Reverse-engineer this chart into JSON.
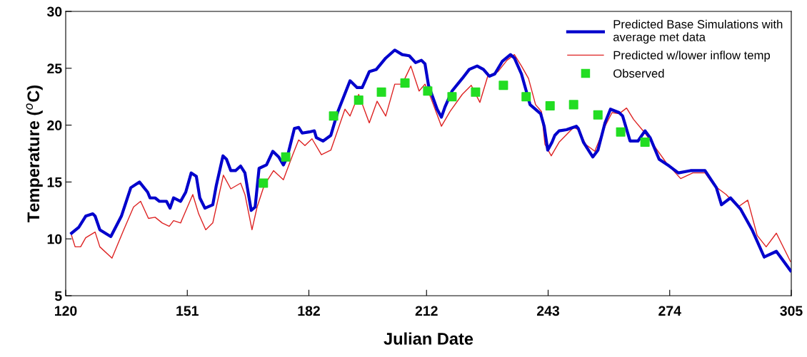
{
  "chart_data": {
    "type": "line",
    "xlabel": "Julian Date",
    "ylabel": "Temperature ($^{o}$C)",
    "xlim": [
      120,
      305
    ],
    "xticks": [
      120,
      151,
      182,
      212,
      243,
      274,
      305
    ],
    "ylim": [
      5,
      30
    ],
    "yticks": [
      5,
      10,
      15,
      20,
      25,
      30
    ],
    "grid": false,
    "legend": "top right",
    "series": [
      {
        "name": "Predicted Base Simulations with\naverage met data",
        "color": "#0000cc",
        "marker": "none",
        "line_style": "solid",
        "x": [
          121.5,
          123.3,
          125.1,
          126.9,
          127.5,
          128.7,
          131.5,
          134.2,
          136.6,
          138.8,
          140.9,
          141.5,
          142.8,
          143.9,
          145.7,
          146.6,
          147.5,
          149.3,
          150.6,
          152.0,
          153.3,
          154.2,
          155.5,
          157.5,
          158.4,
          160.1,
          161.0,
          162.1,
          163.3,
          164.6,
          165.7,
          166.6,
          167.3,
          168.3,
          169.3,
          171.2,
          172.8,
          174.3,
          175.5,
          176.5,
          178.3,
          179.4,
          180.3,
          182.1,
          183.4,
          183.9,
          185.6,
          187.6,
          189.4,
          192.5,
          194.3,
          195.6,
          197.4,
          199.2,
          201.6,
          203.9,
          205.8,
          207.6,
          209.2,
          210.7,
          211.6,
          212.5,
          214.7,
          215.8,
          216.7,
          218.5,
          221.1,
          222.9,
          224.9,
          226.5,
          228.0,
          229.4,
          231.3,
          233.4,
          234.4,
          236.2,
          238.4,
          241.1,
          242.0,
          242.9,
          244.0,
          244.7,
          245.8,
          247.7,
          250.2,
          250.7,
          252.0,
          254.4,
          255.7,
          257.5,
          258.9,
          261.1,
          262.0,
          263.9,
          265.9,
          267.7,
          269.0,
          271.3,
          273.9,
          276.2,
          279.3,
          283.0,
          285.9,
          287.2,
          289.5,
          292.1,
          295.0,
          298.1,
          301.2,
          304.8
        ],
        "values": [
          10.5,
          11.0,
          12.0,
          12.2,
          12.0,
          10.8,
          10.2,
          12.0,
          14.5,
          15.0,
          14.1,
          13.6,
          13.6,
          13.3,
          13.3,
          12.7,
          13.6,
          13.3,
          14.1,
          15.8,
          15.5,
          13.6,
          12.7,
          13.0,
          14.7,
          17.3,
          17.0,
          16.0,
          16.0,
          16.4,
          15.8,
          13.9,
          12.5,
          12.8,
          16.2,
          16.5,
          17.7,
          17.2,
          16.5,
          17.2,
          19.7,
          19.8,
          19.3,
          19.4,
          19.5,
          18.9,
          18.6,
          19.1,
          21.2,
          23.9,
          23.3,
          23.3,
          24.7,
          24.9,
          25.9,
          26.6,
          26.2,
          26.1,
          25.5,
          25.7,
          25.4,
          23.5,
          21.4,
          20.7,
          21.6,
          23.0,
          24.1,
          24.9,
          25.2,
          24.9,
          24.3,
          24.5,
          25.6,
          26.2,
          25.9,
          24.5,
          21.8,
          21.0,
          19.9,
          17.8,
          18.5,
          19.1,
          19.5,
          19.6,
          19.9,
          19.7,
          18.5,
          17.2,
          17.8,
          20.2,
          21.4,
          21.1,
          20.8,
          18.6,
          18.6,
          19.5,
          18.9,
          17.0,
          16.4,
          15.8,
          16.0,
          16.0,
          14.5,
          13.0,
          13.6,
          12.6,
          10.8,
          8.4,
          8.9,
          7.2
        ]
      },
      {
        "name": "Predicted w/lower inflow temp",
        "color": "#dd2222",
        "marker": "none",
        "line_style": "solid",
        "x": [
          121.5,
          122.4,
          123.8,
          125.1,
          127.5,
          128.7,
          131.8,
          134.8,
          137.3,
          139.1,
          141.1,
          142.8,
          144.6,
          146.4,
          147.5,
          149.3,
          152.4,
          153.9,
          155.7,
          157.5,
          160.2,
          162.1,
          164.6,
          165.7,
          167.5,
          168.8,
          170.6,
          173.0,
          175.5,
          177.9,
          179.4,
          181.0,
          182.8,
          185.2,
          187.6,
          191.2,
          192.5,
          194.7,
          197.4,
          199.4,
          201.6,
          203.9,
          205.8,
          208.0,
          210.1,
          211.6,
          213.1,
          215.8,
          218.0,
          221.1,
          223.4,
          225.6,
          227.6,
          230.2,
          232.5,
          234.4,
          236.2,
          238.0,
          239.8,
          241.3,
          242.2,
          243.8,
          245.8,
          249.5,
          250.7,
          252.6,
          254.9,
          257.5,
          259.3,
          261.1,
          263.0,
          264.8,
          267.7,
          270.2,
          273.1,
          276.8,
          279.9,
          283.0,
          285.3,
          288.4,
          291.4,
          293.9,
          296.3,
          298.6,
          301.2,
          304.8
        ],
        "values": [
          10.3,
          9.3,
          9.3,
          10.1,
          10.6,
          9.3,
          8.3,
          10.8,
          12.8,
          13.3,
          11.8,
          11.9,
          11.4,
          11.1,
          11.6,
          11.4,
          13.9,
          12.2,
          10.8,
          11.4,
          15.6,
          14.4,
          14.9,
          13.9,
          10.8,
          12.8,
          14.7,
          16.0,
          15.2,
          17.4,
          18.7,
          18.2,
          18.8,
          17.4,
          17.8,
          21.4,
          20.8,
          22.7,
          20.2,
          22.1,
          20.8,
          23.6,
          23.6,
          25.2,
          23.0,
          23.6,
          22.4,
          19.9,
          21.2,
          22.7,
          23.5,
          22.0,
          24.3,
          24.7,
          25.7,
          26.2,
          25.2,
          24.1,
          21.8,
          21.2,
          18.3,
          17.3,
          18.5,
          19.8,
          19.6,
          18.3,
          17.7,
          19.9,
          21.1,
          21.0,
          21.5,
          20.5,
          19.3,
          18.1,
          16.7,
          15.3,
          15.8,
          15.8,
          14.7,
          13.9,
          12.8,
          13.4,
          10.3,
          9.3,
          10.5,
          8.0
        ]
      },
      {
        "name": "Observed",
        "type": "scatter",
        "color": "#22dd22",
        "marker": "square",
        "x": [
          170.4,
          176.1,
          188.3,
          194.7,
          200.5,
          206.5,
          212.3,
          218.5,
          224.5,
          231.6,
          237.4,
          243.5,
          249.5,
          255.7,
          261.5,
          267.7
        ],
        "values": [
          14.9,
          17.2,
          20.8,
          22.2,
          22.9,
          23.7,
          23.0,
          22.5,
          22.9,
          23.5,
          22.5,
          21.7,
          21.8,
          20.9,
          19.4,
          18.5
        ]
      }
    ]
  }
}
